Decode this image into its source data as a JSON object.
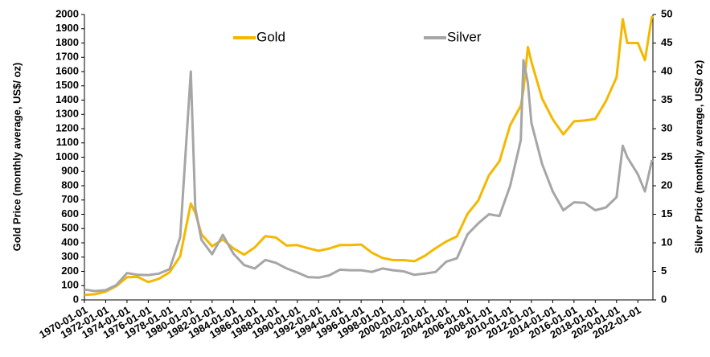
{
  "chart_data": {
    "type": "line",
    "ylabel": "Gold Price (monthly average, US$/ oz)",
    "y2label": "Silver Price (monthly average, US$/ oz)",
    "x": [
      "1970-01-01",
      "1971-01-01",
      "1972-01-01",
      "1973-01-01",
      "1974-01-01",
      "1975-01-01",
      "1976-01-01",
      "1977-01-01",
      "1978-01-01",
      "1979-01-01",
      "1980-01-01",
      "1980-06-01",
      "1981-01-01",
      "1982-01-01",
      "1983-01-01",
      "1984-01-01",
      "1985-01-01",
      "1986-01-01",
      "1987-01-01",
      "1988-01-01",
      "1989-01-01",
      "1990-01-01",
      "1991-01-01",
      "1992-01-01",
      "1993-01-01",
      "1994-01-01",
      "1995-01-01",
      "1996-01-01",
      "1997-01-01",
      "1998-01-01",
      "1999-01-01",
      "2000-01-01",
      "2001-01-01",
      "2002-01-01",
      "2003-01-01",
      "2004-01-01",
      "2005-01-01",
      "2006-01-01",
      "2007-01-01",
      "2008-01-01",
      "2009-01-01",
      "2010-01-01",
      "2011-01-01",
      "2011-04-01",
      "2011-09-01",
      "2012-01-01",
      "2013-01-01",
      "2014-01-01",
      "2015-01-01",
      "2016-01-01",
      "2017-01-01",
      "2018-01-01",
      "2019-01-01",
      "2020-01-01",
      "2020-08-01",
      "2021-01-01",
      "2022-01-01",
      "2022-09-01",
      "2023-05-01"
    ],
    "series": [
      {
        "name": "Gold",
        "color": "#f5b800",
        "values": [
          35,
          40,
          58,
          97,
          159,
          161,
          125,
          148,
          193,
          306,
          675,
          610,
          460,
          376,
          424,
          361,
          317,
          368,
          447,
          437,
          381,
          384,
          362,
          344,
          360,
          384,
          384,
          388,
          331,
          294,
          279,
          279,
          271,
          310,
          363,
          409,
          445,
          604,
          695,
          872,
          972,
          1225,
          1360,
          1470,
          1772,
          1669,
          1411,
          1266,
          1160,
          1251,
          1257,
          1268,
          1393,
          1560,
          1968,
          1800,
          1800,
          1680,
          1990
        ]
      },
      {
        "name": "Silver",
        "color": "#a6a6a6",
        "axis": "y2",
        "values": [
          1.8,
          1.55,
          1.7,
          2.6,
          4.7,
          4.4,
          4.35,
          4.6,
          5.4,
          11,
          40,
          16,
          10.5,
          8,
          11.4,
          8.1,
          6.1,
          5.5,
          7,
          6.5,
          5.5,
          4.8,
          4.0,
          3.9,
          4.3,
          5.3,
          5.2,
          5.2,
          4.9,
          5.5,
          5.2,
          5.0,
          4.4,
          4.6,
          4.9,
          6.7,
          7.3,
          11.5,
          13.4,
          15,
          14.7,
          20,
          28,
          42,
          38,
          31,
          23.8,
          19,
          15.7,
          17.1,
          17,
          15.7,
          16.2,
          18,
          27,
          25,
          22,
          19,
          24.5
        ]
      }
    ],
    "xlim": [
      "1970-01-01",
      "2023-06-01"
    ],
    "xticks": [
      "1970-01-01",
      "1972-01-01",
      "1974-01-01",
      "1976-01-01",
      "1978-01-01",
      "1980-01-01",
      "1982-01-01",
      "1984-01-01",
      "1986-01-01",
      "1988-01-01",
      "1990-01-01",
      "1992-01-01",
      "1994-01-01",
      "1996-01-01",
      "1998-01-01",
      "2000-01-01",
      "2002-01-01",
      "2004-01-01",
      "2006-01-01",
      "2008-01-01",
      "2010-01-01",
      "2012-01-01",
      "2014-01-01",
      "2016-01-01",
      "2018-01-01",
      "2020-01-01",
      "2022-01-01"
    ],
    "ylim": [
      0,
      2000
    ],
    "yticks": [
      0,
      100,
      200,
      300,
      400,
      500,
      600,
      700,
      800,
      900,
      1000,
      1100,
      1200,
      1300,
      1400,
      1500,
      1600,
      1700,
      1800,
      1900,
      2000
    ],
    "y2lim": [
      0,
      50
    ],
    "y2ticks": [
      0,
      5,
      10,
      15,
      20,
      25,
      30,
      35,
      40,
      45,
      50
    ],
    "grid": false,
    "legend": "top"
  }
}
